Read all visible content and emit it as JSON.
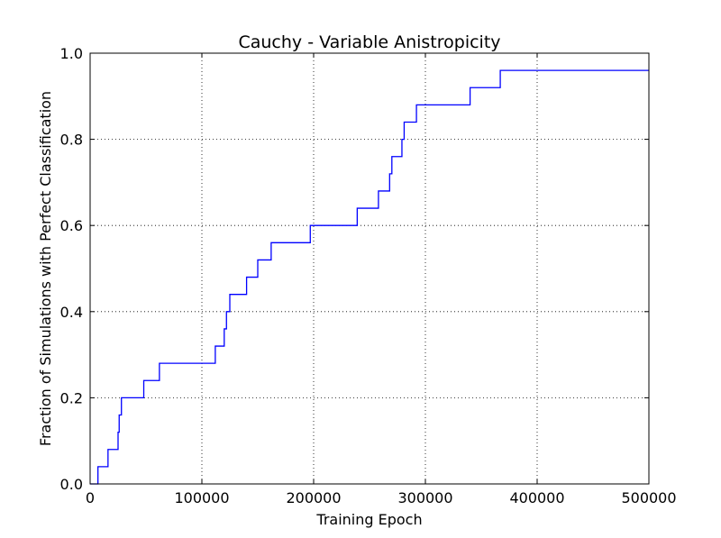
{
  "chart_data": {
    "type": "line",
    "title": "Cauchy - Variable Anistropicity",
    "xlabel": "Training Epoch",
    "ylabel": "Fraction of Simulations with Perfect Classification",
    "xlim": [
      0,
      500000
    ],
    "ylim": [
      0.0,
      1.0
    ],
    "xticks": [
      0,
      100000,
      200000,
      300000,
      400000,
      500000
    ],
    "xtick_labels": [
      "0",
      "100000",
      "200000",
      "300000",
      "400000",
      "500000"
    ],
    "yticks": [
      0.0,
      0.2,
      0.4,
      0.6,
      0.8,
      1.0
    ],
    "ytick_labels": [
      "0.0",
      "0.2",
      "0.4",
      "0.6",
      "0.8",
      "1.0"
    ],
    "grid": true,
    "step": "post",
    "line_color": "#0000ff",
    "series": [
      {
        "x": [
          0,
          7000,
          16000,
          25000,
          26000,
          28000,
          48000,
          62000,
          112000,
          120000,
          122000,
          125000,
          140000,
          150000,
          162000,
          197000,
          239000,
          258000,
          268000,
          270000,
          279000,
          281000,
          292000,
          340000,
          367000,
          500000
        ],
        "y": [
          0.0,
          0.04,
          0.08,
          0.12,
          0.16,
          0.2,
          0.24,
          0.28,
          0.32,
          0.36,
          0.4,
          0.44,
          0.48,
          0.52,
          0.56,
          0.6,
          0.64,
          0.68,
          0.72,
          0.76,
          0.8,
          0.84,
          0.88,
          0.92,
          0.96,
          0.96
        ]
      }
    ]
  }
}
